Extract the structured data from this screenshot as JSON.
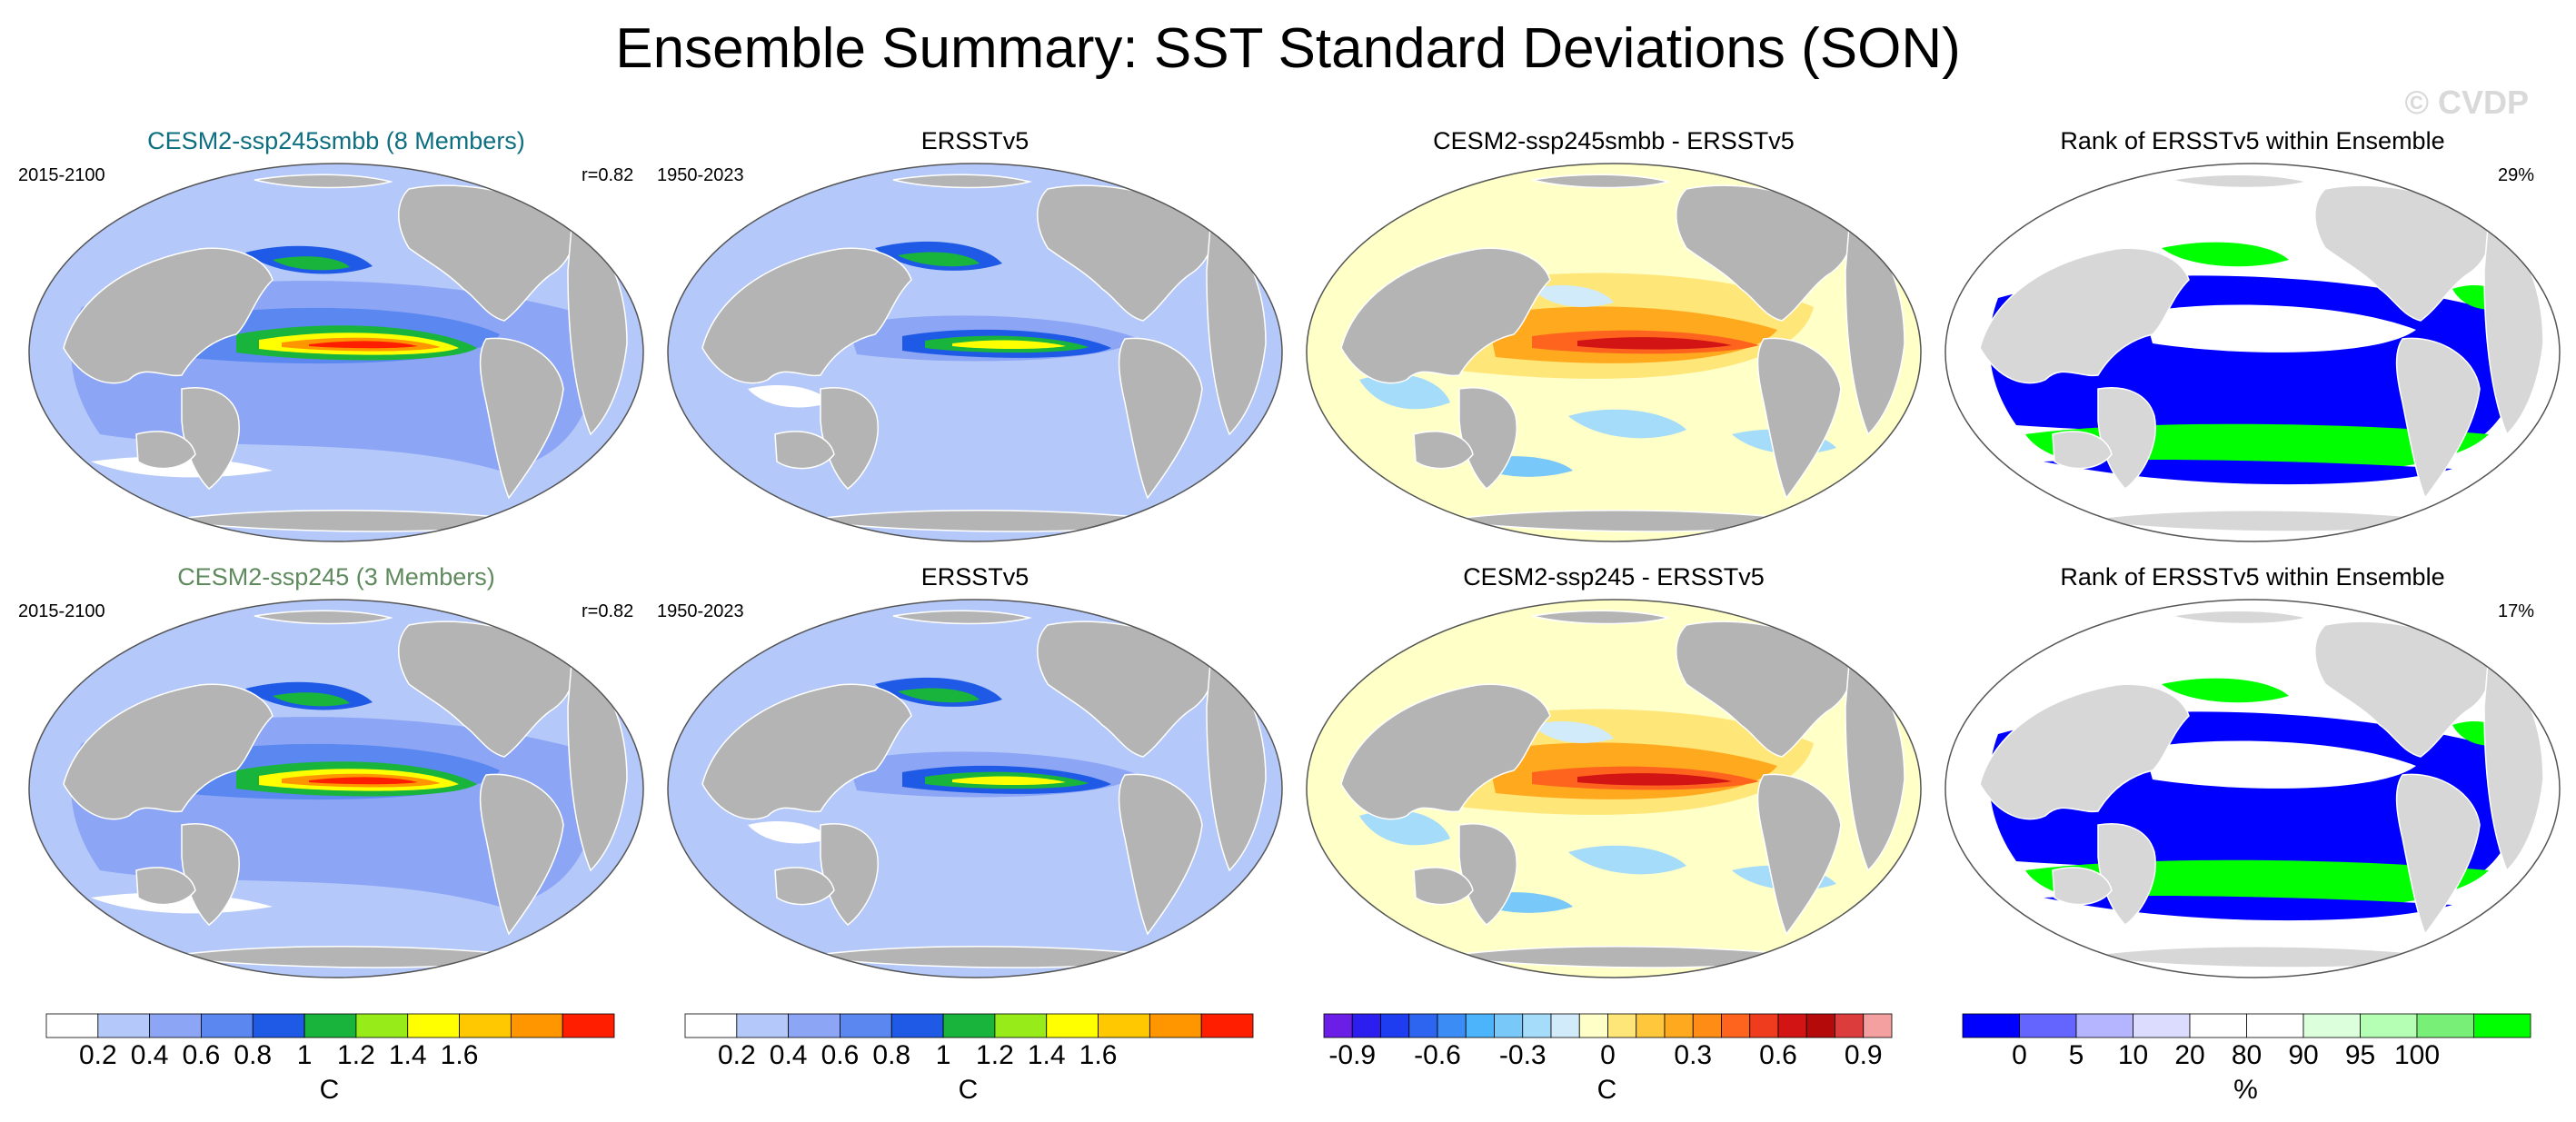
{
  "title": "Ensemble Summary: SST Standard Deviations (SON)",
  "watermark": "© CVDP",
  "rows": [
    {
      "panels": [
        {
          "title": "CESM2-ssp245smbb (8 Members)",
          "title_color": "#0e6f80",
          "years": "2015-2100",
          "stat": "r=0.82",
          "kind": "std"
        },
        {
          "title": "ERSSTv5",
          "title_color": "#000000",
          "years": "1950-2023",
          "stat": "",
          "kind": "obs"
        },
        {
          "title": "CESM2-ssp245smbb - ERSSTv5",
          "title_color": "#000000",
          "years": "",
          "stat": "",
          "kind": "diff"
        },
        {
          "title": "Rank of ERSSTv5 within Ensemble",
          "title_color": "#000000",
          "years": "",
          "stat": "29%",
          "kind": "rank"
        }
      ]
    },
    {
      "panels": [
        {
          "title": "CESM2-ssp245 (3 Members)",
          "title_color": "#5e8a5e",
          "years": "2015-2100",
          "stat": "r=0.82",
          "kind": "std"
        },
        {
          "title": "ERSSTv5",
          "title_color": "#000000",
          "years": "1950-2023",
          "stat": "",
          "kind": "obs"
        },
        {
          "title": "CESM2-ssp245 - ERSSTv5",
          "title_color": "#000000",
          "years": "",
          "stat": "",
          "kind": "diff"
        },
        {
          "title": "Rank of ERSSTv5 within Ensemble",
          "title_color": "#000000",
          "years": "",
          "stat": "17%",
          "kind": "rank"
        }
      ]
    }
  ],
  "colorbars": [
    {
      "colors": [
        "#ffffff",
        "#b4c8fa",
        "#8ca5f5",
        "#5a87f0",
        "#1e5ae6",
        "#19b43c",
        "#96eb19",
        "#ffff00",
        "#ffc800",
        "#ff9600",
        "#ff1e00"
      ],
      "ticks": [
        "0.2",
        "0.4",
        "0.6",
        "0.8",
        "1",
        "1.2",
        "1.4",
        "1.6"
      ],
      "units": "C"
    },
    {
      "colors": [
        "#ffffff",
        "#b4c8fa",
        "#8ca5f5",
        "#5a87f0",
        "#1e5ae6",
        "#19b43c",
        "#96eb19",
        "#ffff00",
        "#ffc800",
        "#ff9600",
        "#ff1e00"
      ],
      "ticks": [
        "0.2",
        "0.4",
        "0.6",
        "0.8",
        "1",
        "1.2",
        "1.4",
        "1.6"
      ],
      "units": "C"
    },
    {
      "colors": [
        "#6a1ee6",
        "#2d1ef0",
        "#1e3cf0",
        "#2d64f0",
        "#3c8cf5",
        "#4bb4fa",
        "#78c8fa",
        "#a5dcfa",
        "#d2ebfa",
        "#ffffc8",
        "#ffe678",
        "#ffc83c",
        "#ffaa1e",
        "#ff8c14",
        "#ff641e",
        "#f03c1e",
        "#d21414",
        "#b40a0a",
        "#dc3c3c",
        "#f5a0a0"
      ],
      "ticks": [
        "-0.9",
        "-0.6",
        "-0.3",
        "0",
        "0.3",
        "0.6",
        "0.9"
      ],
      "units": "C"
    },
    {
      "colors": [
        "#0000ff",
        "#6464ff",
        "#b4b4ff",
        "#dcdcff",
        "#ffffff",
        "#ffffff",
        "#dcffdc",
        "#b4ffb4",
        "#78f078",
        "#00ff00"
      ],
      "ticks": [
        "0",
        "5",
        "10",
        "20",
        "80",
        "90",
        "95",
        "100"
      ],
      "units": "%"
    }
  ]
}
